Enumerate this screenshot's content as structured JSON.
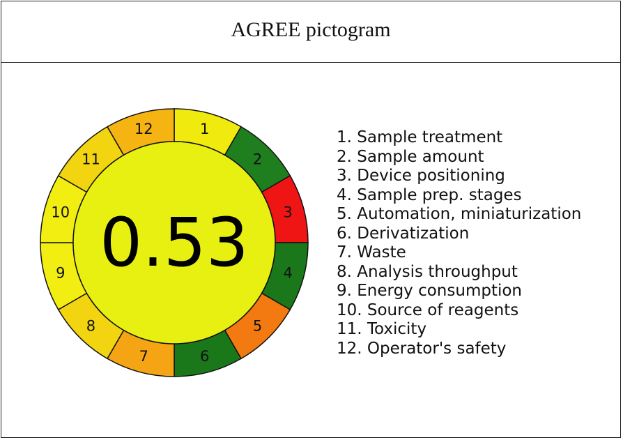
{
  "title": "AGREE pictogram",
  "score": "0.53",
  "score_color": "#e8f012",
  "segments": [
    {
      "number": "1",
      "color": "#f1ea0e"
    },
    {
      "number": "2",
      "color": "#1f7f1f"
    },
    {
      "number": "3",
      "color": "#f01515"
    },
    {
      "number": "4",
      "color": "#1a781a"
    },
    {
      "number": "5",
      "color": "#f27a10"
    },
    {
      "number": "6",
      "color": "#1a781a"
    },
    {
      "number": "7",
      "color": "#f5a514"
    },
    {
      "number": "8",
      "color": "#f2d410"
    },
    {
      "number": "9",
      "color": "#f3ee12"
    },
    {
      "number": "10",
      "color": "#f3ee12"
    },
    {
      "number": "11",
      "color": "#f2d410"
    },
    {
      "number": "12",
      "color": "#f5b412"
    }
  ],
  "legend": [
    "1. Sample treatment",
    "2. Sample amount",
    "3. Device positioning",
    "4. Sample prep. stages",
    "5. Automation, miniaturization",
    "6. Derivatization",
    "7. Waste",
    "8. Analysis throughput",
    "9. Energy consumption",
    "10. Source of reagents",
    "11. Toxicity",
    "12. Operator's safety"
  ]
}
